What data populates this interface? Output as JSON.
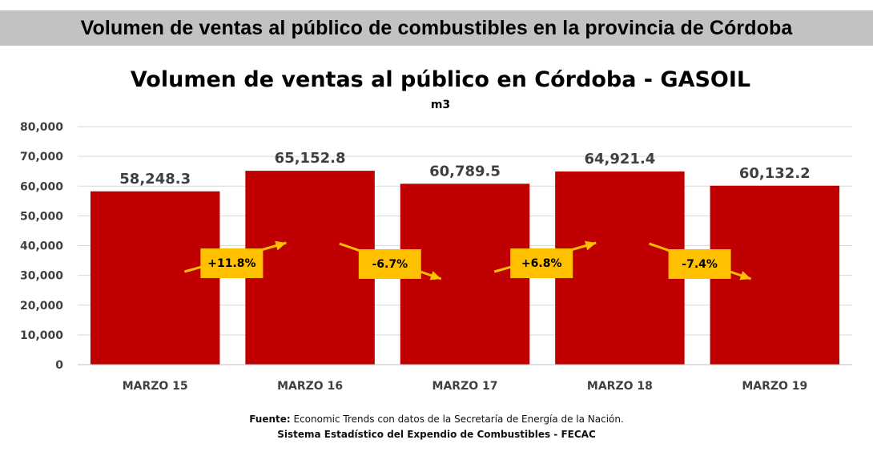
{
  "banner": {
    "title": "Volumen de ventas al público de combustibles en la provincia de Córdoba"
  },
  "colors": {
    "bar": "#c00000",
    "badge": "#ffc000",
    "arrow": "#ffc000",
    "grid": "#d9d9d9",
    "banner": "#c2c2c2"
  },
  "chart_data": {
    "type": "bar",
    "title": "Volumen de ventas al público en Córdoba - GASOIL",
    "subtitle": "m3",
    "categories": [
      "MARZO 15",
      "MARZO 16",
      "MARZO 17",
      "MARZO 18",
      "MARZO 19"
    ],
    "values": [
      58248.3,
      65152.8,
      60789.5,
      64921.4,
      60132.2
    ],
    "value_labels": [
      "58,248.3",
      "65,152.8",
      "60,789.5",
      "64,921.4",
      "60,132.2"
    ],
    "ylim": [
      0,
      80000
    ],
    "yticks": [
      0,
      10000,
      20000,
      30000,
      40000,
      50000,
      60000,
      70000,
      80000
    ],
    "ytick_labels": [
      "0",
      "10,000",
      "20,000",
      "30,000",
      "40,000",
      "50,000",
      "60,000",
      "70,000",
      "80,000"
    ],
    "grid": true,
    "legend": "none",
    "changes": [
      {
        "label": "+11.8%",
        "direction": "up"
      },
      {
        "label": "-6.7%",
        "direction": "down"
      },
      {
        "label": "+6.8%",
        "direction": "up"
      },
      {
        "label": "-7.4%",
        "direction": "down"
      }
    ]
  },
  "source": {
    "prefix": "Fuente:",
    "text": " Economic Trends con datos de la Secretaría de Energía de la Nación.",
    "line2": "Sistema Estadístico del Expendio de Combustibles - FECAC"
  }
}
